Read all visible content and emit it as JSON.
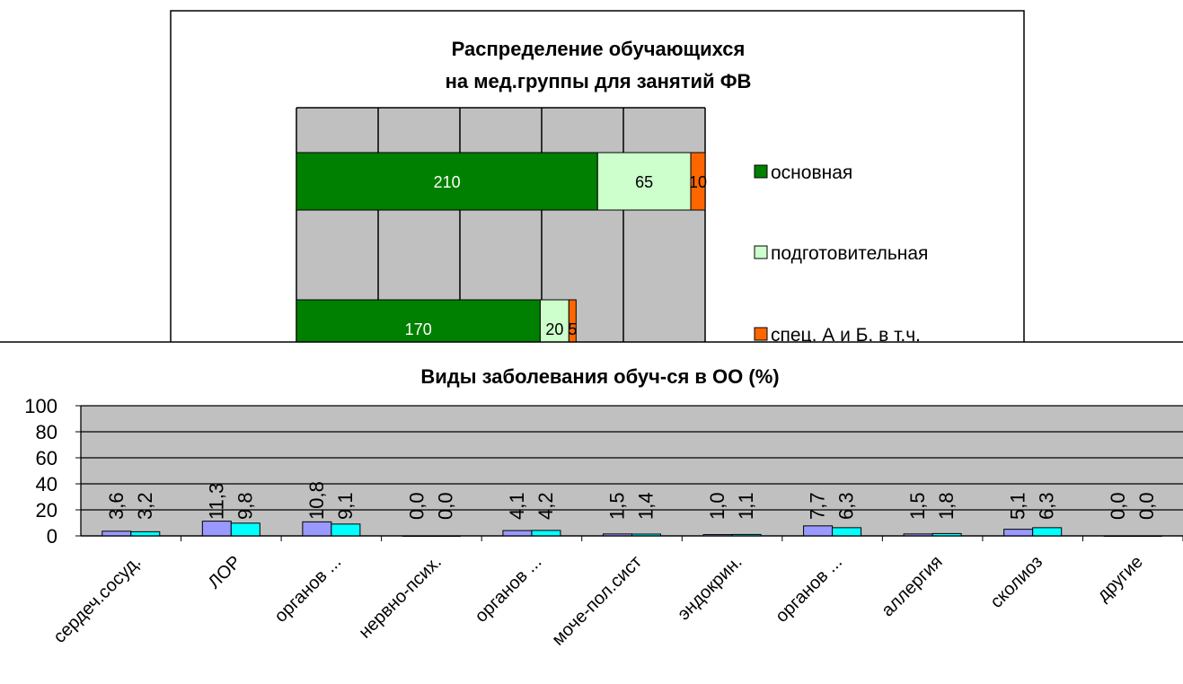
{
  "chart_data": [
    {
      "type": "bar",
      "orientation": "horizontal",
      "stacked": true,
      "title_lines": [
        "Распределение обучающихся",
        "на мед.группы  для занятий  ФВ"
      ],
      "grid": true,
      "legend_position": "right",
      "series": [
        {
          "name": "основная",
          "color": "#008000",
          "values": [
            210,
            170
          ],
          "label_color": "#ffffff"
        },
        {
          "name": "подготовительная",
          "color": "#ccffcc",
          "values": [
            65,
            20
          ],
          "label_color": "#000000"
        },
        {
          "name": "спец. А и Б. в т.ч.",
          "color": "#ff6600",
          "values": [
            10,
            5
          ],
          "label_color": "#000000"
        }
      ],
      "xlim": [
        0,
        285
      ]
    },
    {
      "type": "bar",
      "title": "Виды заболевания  обуч-ся  в ОО (%)",
      "ylim": [
        0,
        100
      ],
      "yticks": [
        0,
        20,
        40,
        60,
        80,
        100
      ],
      "grid": true,
      "categories": [
        "сердеч.сосуд.",
        "ЛОР",
        "органов ...",
        "нервно-псих.",
        "органов ...",
        "моче-пол.сист",
        "эндокрин.",
        "органов ...",
        "аллергия",
        "сколиоз",
        "другие"
      ],
      "series": [
        {
          "color": "#9999ff",
          "values": [
            3.6,
            11.3,
            10.8,
            0.0,
            4.1,
            1.5,
            1.0,
            7.7,
            1.5,
            5.1,
            0.0
          ],
          "labels": [
            "3,6",
            "11,3",
            "10,8",
            "0,0",
            "4,1",
            "1,5",
            "1,0",
            "7,7",
            "1,5",
            "5,1",
            "0,0"
          ]
        },
        {
          "color": "#00ffff",
          "values": [
            3.2,
            9.8,
            9.1,
            0.0,
            4.2,
            1.4,
            1.1,
            6.3,
            1.8,
            6.3,
            0.0
          ],
          "labels": [
            "3,2",
            "9,8",
            "9,1",
            "0,0",
            "4,2",
            "1,4",
            "1,1",
            "6,3",
            "1,8",
            "6,3",
            "0,0"
          ]
        }
      ]
    }
  ]
}
